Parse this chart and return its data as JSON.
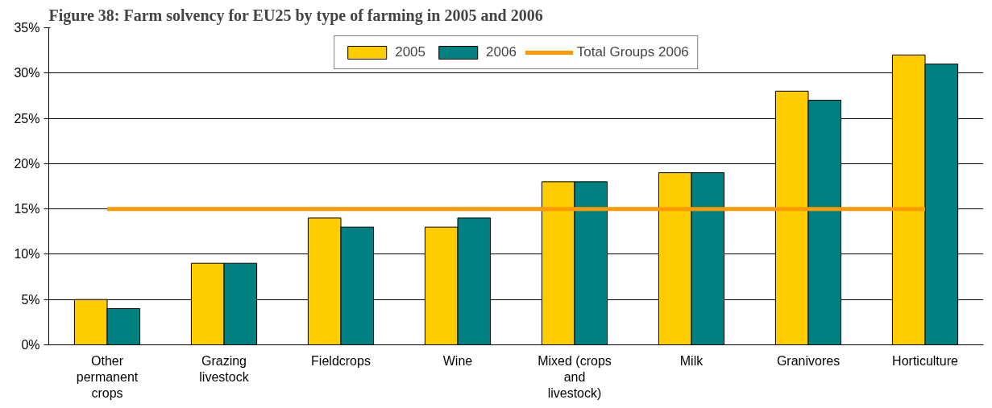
{
  "chart_data": {
    "type": "bar",
    "title": "Figure 38: Farm solvency for EU25 by type of farming in 2005 and 2006",
    "categories": [
      "Other permanent crops",
      "Grazing livestock",
      "Fieldcrops",
      "Wine",
      "Mixed (crops and livestock)",
      "Milk",
      "Granivores",
      "Horticulture"
    ],
    "series": [
      {
        "name": "2005",
        "color": "#ffcc00",
        "values": [
          5,
          9,
          14,
          13,
          18,
          19,
          28,
          32
        ]
      },
      {
        "name": "2006",
        "color": "#008080",
        "values": [
          4,
          9,
          13,
          14,
          18,
          19,
          27,
          31
        ]
      },
      {
        "name": "Total Groups 2006",
        "type": "line",
        "color": "#ff9900",
        "values": [
          15,
          15,
          15,
          15,
          15,
          15,
          15,
          15
        ]
      }
    ],
    "ylim": [
      0,
      35
    ],
    "yticks": [
      {
        "value": 0,
        "label": "0%"
      },
      {
        "value": 5,
        "label": "5%"
      },
      {
        "value": 10,
        "label": "10%"
      },
      {
        "value": 15,
        "label": "15%"
      },
      {
        "value": 20,
        "label": "20%"
      },
      {
        "value": 25,
        "label": "25%"
      },
      {
        "value": 30,
        "label": "30%"
      },
      {
        "value": 35,
        "label": "35%"
      }
    ],
    "grid": "y",
    "legend": "top"
  }
}
